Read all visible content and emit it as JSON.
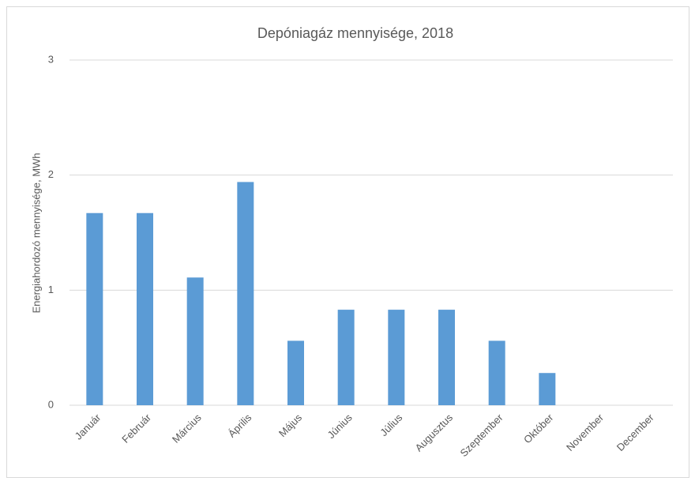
{
  "chart_data": {
    "type": "bar",
    "title": "Depóniagáz mennyisége, 2018",
    "y_label": "Energiahordozó mennyisége, MWh",
    "categories": [
      "Január",
      "Február",
      "Március",
      "Április",
      "Május",
      "Június",
      "Július",
      "Augusztus",
      "Szeptember",
      "Október",
      "November",
      "December"
    ],
    "values": [
      1.67,
      1.67,
      1.11,
      1.94,
      0.56,
      0.83,
      0.83,
      0.83,
      0.56,
      0.28,
      0,
      0
    ],
    "color": "#5b9bd5",
    "ylim": [
      0,
      3
    ],
    "yticks": [
      0,
      1,
      2,
      3
    ],
    "grid": true
  }
}
